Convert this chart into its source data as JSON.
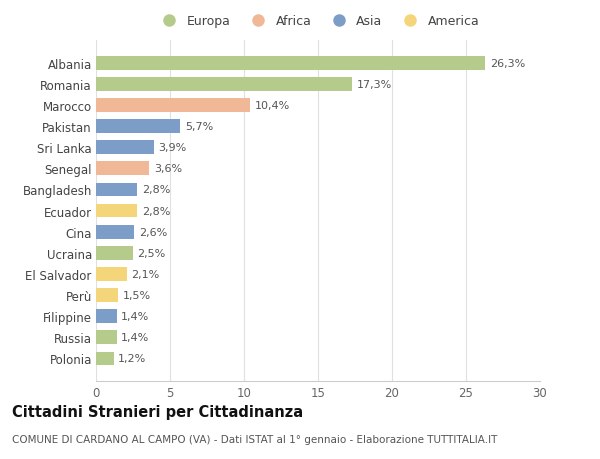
{
  "categories": [
    "Albania",
    "Romania",
    "Marocco",
    "Pakistan",
    "Sri Lanka",
    "Senegal",
    "Bangladesh",
    "Ecuador",
    "Cina",
    "Ucraina",
    "El Salvador",
    "Perù",
    "Filippine",
    "Russia",
    "Polonia"
  ],
  "values": [
    26.3,
    17.3,
    10.4,
    5.7,
    3.9,
    3.6,
    2.8,
    2.8,
    2.6,
    2.5,
    2.1,
    1.5,
    1.4,
    1.4,
    1.2
  ],
  "labels": [
    "26,3%",
    "17,3%",
    "10,4%",
    "5,7%",
    "3,9%",
    "3,6%",
    "2,8%",
    "2,8%",
    "2,6%",
    "2,5%",
    "2,1%",
    "1,5%",
    "1,4%",
    "1,4%",
    "1,2%"
  ],
  "continents": [
    "Europa",
    "Europa",
    "Africa",
    "Asia",
    "Asia",
    "Africa",
    "Asia",
    "America",
    "Asia",
    "Europa",
    "America",
    "America",
    "Asia",
    "Europa",
    "Europa"
  ],
  "colors": {
    "Europa": "#b5cb8b",
    "Africa": "#f0b896",
    "Asia": "#7b9dc7",
    "America": "#f5d57a"
  },
  "legend_order": [
    "Europa",
    "Africa",
    "Asia",
    "America"
  ],
  "title": "Cittadini Stranieri per Cittadinanza",
  "subtitle": "COMUNE DI CARDANO AL CAMPO (VA) - Dati ISTAT al 1° gennaio - Elaborazione TUTTITALIA.IT",
  "xlim": [
    0,
    30
  ],
  "xticks": [
    0,
    5,
    10,
    15,
    20,
    25,
    30
  ],
  "background_color": "#ffffff",
  "grid_color": "#e0e0e0",
  "bar_height": 0.65,
  "label_fontsize": 8,
  "title_fontsize": 10.5,
  "subtitle_fontsize": 7.5,
  "ytick_fontsize": 8.5,
  "xtick_fontsize": 8.5
}
